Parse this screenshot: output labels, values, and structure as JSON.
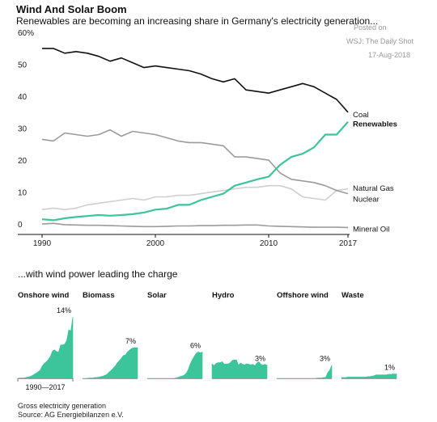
{
  "header": {
    "title": "Wind And Solar Boom",
    "subtitle": "Renewables are becoming an increasing share in Germany's electricity generation..."
  },
  "watermark": {
    "line1": "Posted on",
    "line2": "WSJ: The Daily Shot",
    "line3": "17-Aug-2018"
  },
  "small_multiples_title": "...with wind power leading the charge",
  "footer": {
    "note": "Gross electricity generation",
    "source": "Source: AG Energiebilanzen e.V."
  },
  "colors": {
    "coal": "#111111",
    "renewables": "#3cc49a",
    "natural_gas": "#9b9b9b",
    "nuclear": "#cfcfcf",
    "mineral_oil": "#9b9b9b",
    "area": "#3cc49a",
    "axis": "#111111",
    "grid": "#e6e6e6"
  },
  "chart_data": [
    {
      "type": "line",
      "ylim": [
        0,
        60
      ],
      "xlim": [
        1990,
        2017
      ],
      "x_ticks": [
        "1990",
        "2000",
        "2010",
        "2017"
      ],
      "y_ticks": [
        "0",
        "10",
        "20",
        "30",
        "40",
        "50",
        "60%"
      ],
      "x": [
        1990,
        1991,
        1992,
        1993,
        1994,
        1995,
        1996,
        1997,
        1998,
        1999,
        2000,
        2001,
        2002,
        2003,
        2004,
        2005,
        2006,
        2007,
        2008,
        2009,
        2010,
        2011,
        2012,
        2013,
        2014,
        2015,
        2016,
        2017
      ],
      "series": [
        {
          "name": "Coal",
          "key": "coal",
          "values": [
            57.0,
            57.0,
            55.5,
            56.0,
            55.5,
            54.5,
            53.0,
            54.0,
            52.5,
            51.0,
            51.5,
            51.0,
            50.5,
            50.0,
            49.0,
            47.5,
            46.5,
            47.5,
            44.0,
            43.5,
            43.0,
            44.0,
            45.0,
            46.0,
            45.0,
            43.0,
            41.0,
            37.0
          ]
        },
        {
          "name": "Renewables",
          "key": "renewables",
          "bold": true,
          "values": [
            3.5,
            3.2,
            3.8,
            4.2,
            4.5,
            4.8,
            4.6,
            4.8,
            5.1,
            5.6,
            6.5,
            6.8,
            8.0,
            8.0,
            9.5,
            10.5,
            11.5,
            14.0,
            15.0,
            16.0,
            16.8,
            20.5,
            23.0,
            24.0,
            26.0,
            30.0,
            30.0,
            34.0
          ]
        },
        {
          "name": "Natural Gas",
          "key": "natural_gas",
          "values": [
            28.5,
            28.0,
            30.5,
            30.0,
            29.5,
            30.0,
            31.5,
            29.5,
            31.0,
            30.5,
            30.0,
            29.0,
            28.0,
            27.5,
            27.5,
            27.0,
            26.5,
            23.0,
            23.0,
            22.5,
            22.0,
            18.0,
            16.0,
            15.5,
            15.0,
            14.0,
            12.5,
            11.5
          ]
        },
        {
          "name": "Nuclear",
          "key": "nuclear",
          "values": [
            6.5,
            7.0,
            6.5,
            7.0,
            8.0,
            8.5,
            9.0,
            9.5,
            10.0,
            9.5,
            10.5,
            10.5,
            11.0,
            11.0,
            11.5,
            12.0,
            12.5,
            13.0,
            13.5,
            13.5,
            14.0,
            14.0,
            13.0,
            10.5,
            10.0,
            9.5,
            12.5,
            13.0
          ]
        },
        {
          "name": "Mineral Oil",
          "key": "mineral_oil",
          "values": [
            2.0,
            2.2,
            1.8,
            1.7,
            1.6,
            1.6,
            1.5,
            1.4,
            1.3,
            1.2,
            1.2,
            1.3,
            1.4,
            1.4,
            1.5,
            1.5,
            1.6,
            1.6,
            1.7,
            1.7,
            1.4,
            1.3,
            1.2,
            1.1,
            1.0,
            1.0,
            1.0,
            0.9
          ]
        }
      ]
    },
    {
      "type": "area",
      "x_range_label": "1990—2017",
      "ymax": 14,
      "series": [
        {
          "name": "Onshore wind",
          "end_label": "14%",
          "values": [
            0.0,
            0.1,
            0.1,
            0.1,
            0.2,
            0.3,
            0.4,
            0.6,
            0.9,
            1.2,
            1.5,
            1.9,
            2.8,
            3.4,
            3.8,
            4.3,
            5.0,
            6.2,
            6.5,
            6.1,
            6.0,
            7.6,
            7.6,
            7.8,
            8.6,
            11.1,
            10.8,
            14.0
          ]
        },
        {
          "name": "Biomass",
          "end_label": "7%",
          "values": [
            0.0,
            0.0,
            0.0,
            0.1,
            0.1,
            0.1,
            0.2,
            0.2,
            0.3,
            0.4,
            0.5,
            0.7,
            0.9,
            1.4,
            1.8,
            2.3,
            2.8,
            3.5,
            4.0,
            4.6,
            5.2,
            5.3,
            6.0,
            6.4,
            6.8,
            7.0,
            7.0,
            7.0
          ]
        },
        {
          "name": "Solar",
          "end_label": "6%",
          "values": [
            0.0,
            0.0,
            0.0,
            0.0,
            0.0,
            0.0,
            0.0,
            0.0,
            0.0,
            0.0,
            0.0,
            0.0,
            0.0,
            0.0,
            0.1,
            0.2,
            0.4,
            0.5,
            0.7,
            1.1,
            1.9,
            3.2,
            4.2,
            5.0,
            5.7,
            6.0,
            5.8,
            6.0
          ]
        },
        {
          "name": "Hydro",
          "end_label": "3%",
          "values": [
            3.3,
            2.9,
            3.4,
            3.6,
            3.6,
            3.8,
            3.2,
            3.3,
            3.3,
            3.6,
            4.1,
            4.2,
            4.2,
            3.0,
            3.5,
            3.2,
            3.1,
            3.3,
            3.2,
            3.1,
            3.2,
            2.9,
            3.5,
            3.8,
            3.2,
            3.0,
            3.2,
            3.0
          ]
        },
        {
          "name": "Offshore wind",
          "end_label": "3%",
          "values": [
            0,
            0,
            0,
            0,
            0,
            0,
            0,
            0,
            0,
            0,
            0,
            0,
            0,
            0,
            0,
            0,
            0,
            0,
            0,
            0,
            0.1,
            0.1,
            0.1,
            0.2,
            0.2,
            1.3,
            1.9,
            3.0
          ]
        },
        {
          "name": "Waste",
          "end_label": "1%",
          "values": [
            0.2,
            0.2,
            0.2,
            0.3,
            0.3,
            0.3,
            0.3,
            0.3,
            0.3,
            0.3,
            0.3,
            0.3,
            0.3,
            0.4,
            0.4,
            0.5,
            0.6,
            0.8,
            0.8,
            0.8,
            0.8,
            0.8,
            0.8,
            0.9,
            0.9,
            1.0,
            1.0,
            1.0
          ]
        }
      ]
    }
  ]
}
